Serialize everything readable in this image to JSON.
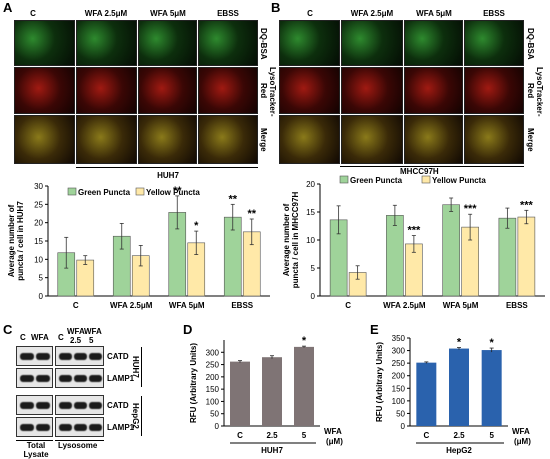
{
  "panel_a": {
    "label": "A",
    "col_headers": [
      "C",
      "WFA 2.5μM",
      "WFA 5μM",
      "EBSS"
    ],
    "row_labels": [
      "DQ-BSA",
      "LysoTracker-Red",
      "Merge"
    ],
    "cell_line": "HUH7"
  },
  "panel_b": {
    "label": "B",
    "col_headers": [
      "C",
      "WFA 2.5μM",
      "WFA 5μM",
      "EBSS"
    ],
    "row_labels": [
      "DQ-BSA",
      "LysoTracker-Red",
      "Merge"
    ],
    "cell_line": "MHCC97H"
  },
  "panel_c": {
    "label": "C",
    "lane_labels_top": [
      "C",
      "WFA",
      "C",
      "WFA",
      "WFA"
    ],
    "lane_labels_sub": [
      "2.5",
      "5"
    ],
    "rows": [
      "CATD",
      "LAMP1",
      "CATD",
      "LAMP1"
    ],
    "cell_lines": [
      "HUH7",
      "HepG2"
    ],
    "bottom_labels": [
      "Total Lysate",
      "Lysosome"
    ]
  },
  "panel_d_label": "D",
  "panel_e_label": "E",
  "chart_data": [
    {
      "type": "bar",
      "panel": "A",
      "categories": [
        "C",
        "WFA 2.5μM",
        "WFA 5μM",
        "EBSS"
      ],
      "series": [
        {
          "name": "Green Puncta",
          "values": [
            11.8,
            16.3,
            22.8,
            21.5
          ],
          "errors": [
            4.2,
            3.5,
            4.5,
            3.5
          ],
          "sig": [
            "",
            "",
            "**",
            "**"
          ],
          "color": "#9fd39a"
        },
        {
          "name": "Yellow Puncta",
          "values": [
            9.8,
            11.0,
            14.5,
            17.5
          ],
          "errors": [
            1.2,
            2.8,
            3.2,
            3.5
          ],
          "sig": [
            "",
            "",
            "*",
            "**"
          ],
          "color": "#ffe9a8"
        }
      ],
      "ylabel": "Average number of puncta / cell in HUH7",
      "ylim": [
        0,
        30
      ],
      "yticks": [
        0,
        5,
        10,
        15,
        20,
        25,
        30
      ]
    },
    {
      "type": "bar",
      "panel": "B",
      "categories": [
        "C",
        "WFA 2.5μM",
        "WFA 5μM",
        "EBSS"
      ],
      "series": [
        {
          "name": "Green Puncta",
          "values": [
            13.6,
            14.4,
            16.3,
            13.9
          ],
          "errors": [
            2.5,
            1.8,
            1.2,
            1.8
          ],
          "sig": [
            "",
            "",
            "",
            ""
          ],
          "color": "#9fd39a"
        },
        {
          "name": "Yellow Puncta",
          "values": [
            4.2,
            9.3,
            12.3,
            14.1
          ],
          "errors": [
            1.2,
            1.5,
            2.3,
            1.2
          ],
          "sig": [
            "",
            "***",
            "***",
            "***"
          ],
          "color": "#ffe9a8"
        }
      ],
      "ylabel": "Average number of puncta / cell in MHCC97H",
      "ylim": [
        0,
        20
      ],
      "yticks": [
        0,
        5,
        10,
        15,
        20
      ]
    },
    {
      "type": "bar",
      "panel": "D",
      "categories": [
        "C",
        "2.5",
        "5"
      ],
      "values": [
        262,
        280,
        322
      ],
      "errors": [
        4,
        6,
        3
      ],
      "sig": [
        "",
        "",
        "*"
      ],
      "color": "#7f7475",
      "ylabel": "RFU (Arbitrary Units)",
      "xlabel_unit": "WFA (μM)",
      "cell_line": "HUH7",
      "ylim": [
        0,
        350
      ],
      "yticks": [
        0,
        50,
        100,
        150,
        200,
        250,
        300
      ]
    },
    {
      "type": "bar",
      "panel": "E",
      "categories": [
        "C",
        "2.5",
        "5"
      ],
      "values": [
        252,
        308,
        302
      ],
      "errors": [
        3,
        4,
        8
      ],
      "sig": [
        "",
        "*",
        "*"
      ],
      "color": "#2a62ad",
      "ylabel": "RFU (Arbitrary Units)",
      "xlabel_unit": "WFA (μM)",
      "cell_line": "HepG2",
      "ylim": [
        0,
        350
      ],
      "yticks": [
        0,
        50,
        100,
        150,
        200,
        250,
        300,
        350
      ]
    }
  ]
}
